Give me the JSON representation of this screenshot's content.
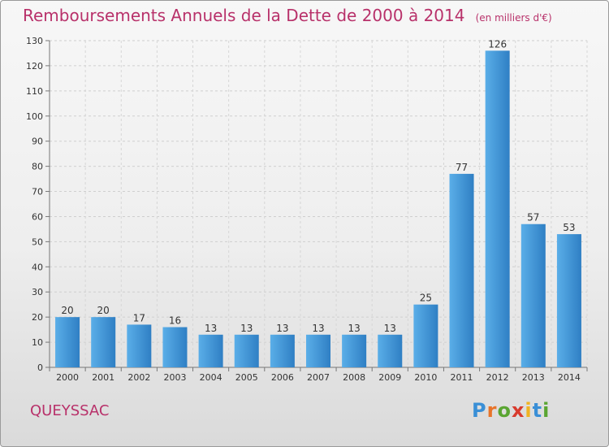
{
  "chart_data": {
    "type": "bar",
    "title": "Remboursements Annuels de la Dette de 2000 à 2014",
    "unit_note": "(en milliers d'€)",
    "categories": [
      "2000",
      "2001",
      "2002",
      "2003",
      "2004",
      "2005",
      "2006",
      "2007",
      "2008",
      "2009",
      "2010",
      "2011",
      "2012",
      "2013",
      "2014"
    ],
    "values": [
      20,
      20,
      17,
      16,
      13,
      13,
      13,
      13,
      13,
      13,
      25,
      77,
      126,
      57,
      53
    ],
    "ylim": [
      0,
      130
    ],
    "yticks": [
      0,
      10,
      20,
      30,
      40,
      50,
      60,
      70,
      80,
      90,
      100,
      110,
      120,
      130
    ],
    "grid": true,
    "bar_color": "#3d8fd6",
    "bar_color_light": "#5aaee8"
  },
  "place_name": "QUEYSSAC",
  "logo": {
    "name": "Proxiti",
    "letters": [
      "P",
      "r",
      "o",
      "x",
      "i",
      "t",
      "i"
    ]
  }
}
